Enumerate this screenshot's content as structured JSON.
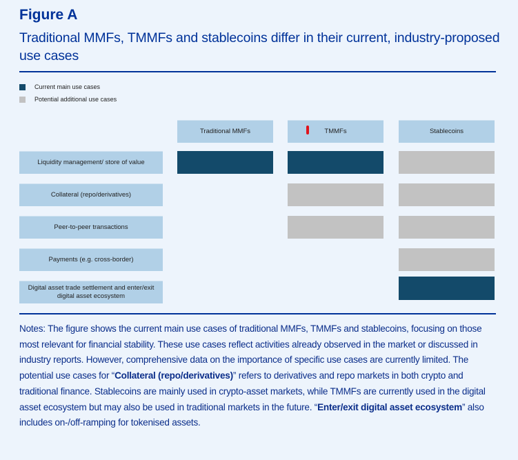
{
  "figure_label": "Figure A",
  "title": "Traditional MMFs, TMMFs and stablecoins differ in their current, industry-proposed use cases",
  "legend": [
    {
      "label": "Current main use cases",
      "color": "#134a6a"
    },
    {
      "label": "Potential additional use cases",
      "color": "#c2c2c2"
    }
  ],
  "columns": [
    "Traditional MMFs",
    "TMMFs",
    "Stablecoins"
  ],
  "rows": [
    {
      "label": "Liquidity management/ store of value",
      "cells": [
        "current",
        "current",
        "potential"
      ]
    },
    {
      "label": "Collateral (repo/derivatives)",
      "cells": [
        "none",
        "potential",
        "potential"
      ]
    },
    {
      "label": "Peer-to-peer transactions",
      "cells": [
        "none",
        "potential",
        "potential"
      ]
    },
    {
      "label": "Payments (e.g. cross-border)",
      "cells": [
        "none",
        "none",
        "potential"
      ]
    },
    {
      "label": "Digital asset trade settlement and enter/exit digital asset ecosystem",
      "cells": [
        "none",
        "none",
        "current"
      ]
    }
  ],
  "notes": [
    {
      "text": "Notes: The figure shows the current main use cases of traditional MMFs, TMMFs and stablecoins, focusing on those most relevant for financial stability. These use cases reflect activities already observed in the market or discussed in industry reports. However, comprehensive data on the importance of specific use cases are currently limited. The potential use cases for “",
      "bold": false
    },
    {
      "text": "Collateral (repo/derivatives)",
      "bold": true
    },
    {
      "text": "” refers to derivatives and repo markets in both crypto and traditional finance. Stablecoins are mainly used in crypto-asset markets, while TMMFs are currently used in the digital asset ecosystem but may also be used in traditional markets in the future. “",
      "bold": false
    },
    {
      "text": "Enter/exit digital asset ecosystem",
      "bold": true
    },
    {
      "text": "” also includes on-/off-ramping for tokenised assets.",
      "bold": false
    }
  ]
}
